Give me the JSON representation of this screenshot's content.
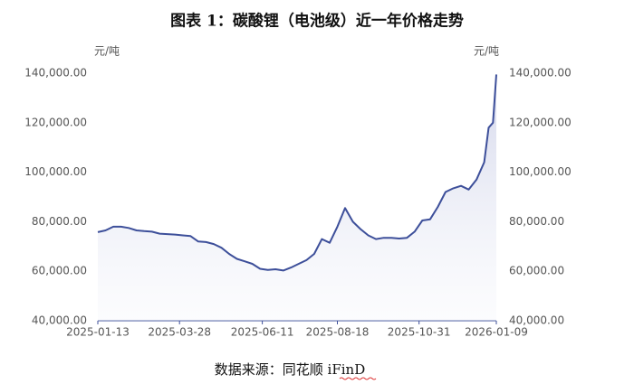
{
  "chart_data": {
    "type": "line",
    "title": "图表 1：碳酸锂（电池级）近一年价格走势",
    "ylabel": "元/吨",
    "y2label": "元/吨",
    "source": "数据来源：同花顺 iFinD",
    "x": [
      "2025-01-13",
      "2025-01-20",
      "2025-01-27",
      "2025-02-03",
      "2025-02-10",
      "2025-02-17",
      "2025-02-24",
      "2025-03-03",
      "2025-03-10",
      "2025-03-17",
      "2025-03-24",
      "2025-03-31",
      "2025-04-07",
      "2025-04-14",
      "2025-04-21",
      "2025-04-28",
      "2025-05-05",
      "2025-05-12",
      "2025-05-19",
      "2025-05-26",
      "2025-06-02",
      "2025-06-09",
      "2025-06-16",
      "2025-06-23",
      "2025-06-30",
      "2025-07-07",
      "2025-07-14",
      "2025-07-21",
      "2025-07-28",
      "2025-08-04",
      "2025-08-11",
      "2025-08-18",
      "2025-08-25",
      "2025-09-01",
      "2025-09-08",
      "2025-09-15",
      "2025-09-22",
      "2025-09-29",
      "2025-10-06",
      "2025-10-13",
      "2025-10-20",
      "2025-10-27",
      "2025-11-03",
      "2025-11-10",
      "2025-11-17",
      "2025-11-24",
      "2025-12-01",
      "2025-12-08",
      "2025-12-15",
      "2025-12-22",
      "2025-12-29",
      "2026-01-02",
      "2026-01-06",
      "2026-01-09"
    ],
    "series": [
      {
        "name": "碳酸锂（电池级）",
        "color": "#3d4f9a",
        "values": [
          75800,
          76500,
          78000,
          78000,
          77500,
          76500,
          76200,
          76000,
          75200,
          75000,
          74800,
          74500,
          74200,
          72000,
          71800,
          71000,
          69500,
          67000,
          65000,
          64000,
          63000,
          61000,
          60500,
          60800,
          60300,
          61500,
          63000,
          64500,
          67000,
          73000,
          71500,
          78000,
          85500,
          80000,
          77000,
          74500,
          73000,
          73500,
          73500,
          73200,
          73500,
          76000,
          80500,
          81000,
          86000,
          92000,
          93500,
          94500,
          93000,
          97000,
          104000,
          118000,
          120000,
          139500
        ]
      }
    ],
    "xlim": [
      "2025-01-13",
      "2026-01-09"
    ],
    "xticks": [
      "2025-01-13",
      "2025-03-28",
      "2025-06-11",
      "2025-08-18",
      "2025-10-31",
      "2026-01-09"
    ],
    "ylim": [
      40000,
      140000
    ],
    "yticks": [
      {
        "value": 40000,
        "label": "40,000.00"
      },
      {
        "value": 60000,
        "label": "60,000.00"
      },
      {
        "value": 80000,
        "label": "80,000.00"
      },
      {
        "value": 100000,
        "label": "100,000.00"
      },
      {
        "value": 120000,
        "label": "120,000.00"
      },
      {
        "value": 140000,
        "label": "140,000.00"
      }
    ],
    "y2lim": [
      40000,
      140000
    ],
    "y2ticks": [
      {
        "value": 40000,
        "label": "40,000.00"
      },
      {
        "value": 60000,
        "label": "60,000.00"
      },
      {
        "value": 80000,
        "label": "80,000.00"
      },
      {
        "value": 100000,
        "label": "100,000.00"
      },
      {
        "value": 120000,
        "label": "120,000.00"
      },
      {
        "value": 140000,
        "label": "140,000.00"
      }
    ]
  }
}
